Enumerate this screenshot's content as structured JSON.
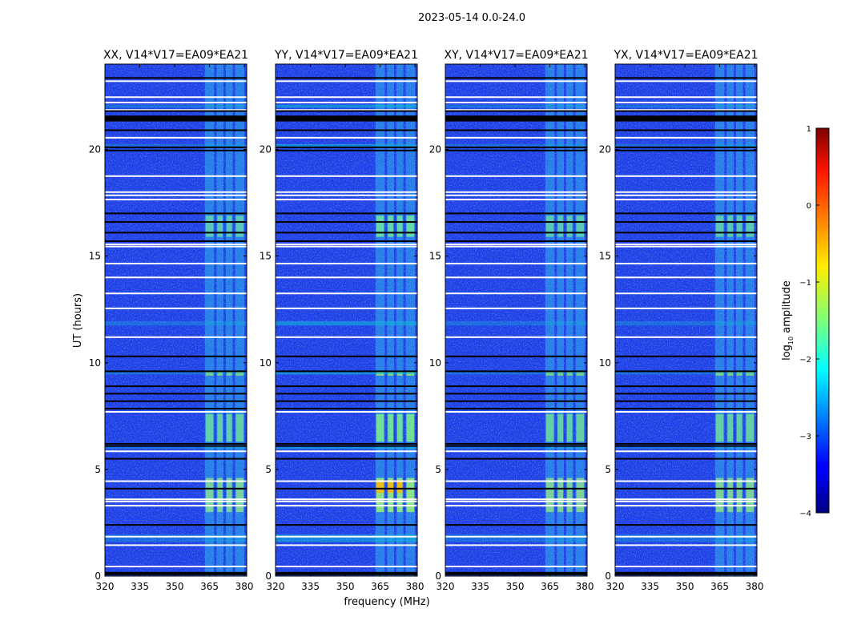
{
  "figure": {
    "suptitle": "2023-05-14 0.0-24.0",
    "xlabel": "frequency (MHz)",
    "ylabel": "UT (hours)",
    "colorbar_label": "log",
    "colorbar_label_sub": "10",
    "colorbar_label_rest": " amplitude"
  },
  "chart_data": {
    "type": "heatmap",
    "colormap": "jet",
    "x_range_mhz": [
      320,
      381
    ],
    "y_range_hours": [
      0,
      24
    ],
    "x_ticks": [
      320,
      335,
      350,
      365,
      380
    ],
    "y_ticks": [
      0,
      5,
      10,
      15,
      20
    ],
    "colorbar": {
      "range": [
        -4,
        1
      ],
      "ticks": [
        -4,
        -3,
        -2,
        -1,
        0,
        1
      ],
      "tick_labels": [
        "−4",
        "−3",
        "−2",
        "−1",
        "0",
        "1"
      ]
    },
    "panels": [
      {
        "title": "XX, V14*V17=EA09*EA21",
        "pol": "XX"
      },
      {
        "title": "YY, V14*V17=EA09*EA21",
        "pol": "YY"
      },
      {
        "title": "XY, V14*V17=EA09*EA21",
        "pol": "XY"
      },
      {
        "title": "YX, V14*V17=EA09*EA21",
        "pol": "YX"
      }
    ],
    "rfi_channels_mhz": [
      {
        "from": 363,
        "to": 367
      },
      {
        "from": 368,
        "to": 371
      },
      {
        "from": 372,
        "to": 375
      },
      {
        "from": 376,
        "to": 380
      }
    ],
    "flagged_rows_hours": [
      0.15,
      0.45,
      1.45,
      1.85,
      3.3,
      3.5,
      3.6,
      4.45,
      5.85,
      7.7,
      11.2,
      12.55,
      13.25,
      14.0,
      14.65,
      15.45,
      15.55,
      17.65,
      17.85,
      18.0,
      18.75,
      20.55,
      21.85,
      22.2,
      22.45,
      23.2
    ],
    "missing_rows_hours": [
      0.1,
      2.4,
      4.1,
      5.5,
      6.1,
      6.2,
      7.85,
      8.2,
      8.55,
      8.9,
      9.6,
      10.3,
      15.7,
      16.1,
      16.6,
      17.0,
      19.95,
      20.1,
      20.9,
      21.35,
      21.45,
      21.55,
      21.8,
      23.35
    ]
  }
}
